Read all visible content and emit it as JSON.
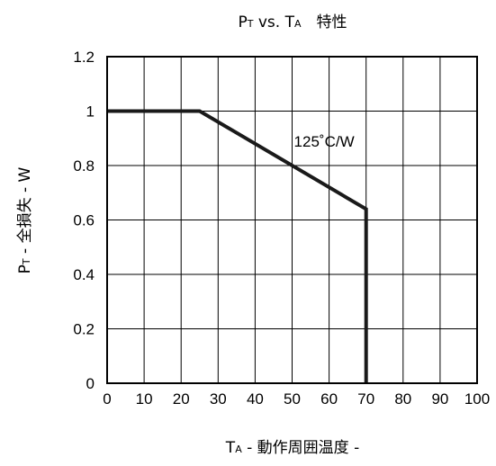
{
  "chart_data": {
    "type": "line",
    "title": {
      "p1": "P",
      "p1_sub": "T",
      "mid": " vs. ",
      "p2": "T",
      "p2_sub": "A",
      "suffix": "　特性"
    },
    "xlabel": {
      "main": "T",
      "sub": "A",
      "rest": " - 動作周囲温度 -"
    },
    "ylabel": {
      "main": "P",
      "sub": "T",
      "rest": " - 全損失 - W"
    },
    "xlim": [
      0,
      100
    ],
    "ylim": [
      0,
      1.2
    ],
    "x_ticks": [
      0,
      10,
      20,
      30,
      40,
      50,
      60,
      70,
      80,
      90,
      100
    ],
    "y_ticks": [
      0,
      0.2,
      0.4,
      0.6,
      0.8,
      1,
      1.2
    ],
    "y_tick_labels": [
      "0",
      "0.2",
      "0.4",
      "0.6",
      "0.8",
      "1",
      "1.2"
    ],
    "grid": true,
    "series": [
      {
        "points": [
          [
            0,
            1
          ],
          [
            25,
            1
          ],
          [
            70,
            0.64
          ],
          [
            70,
            0
          ]
        ]
      }
    ],
    "annotation": {
      "text": "125˚C/W",
      "x": 50.5,
      "y": 0.87
    }
  }
}
